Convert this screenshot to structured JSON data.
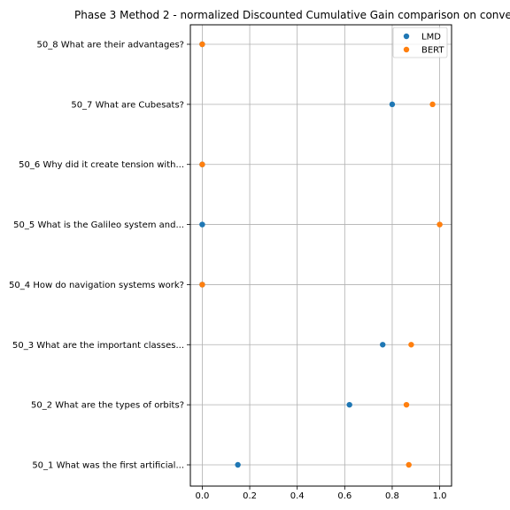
{
  "chart_data": {
    "type": "scatter",
    "title": "Phase 3 Method 2 - normalized Discounted Cumulative Gain comparison on conve",
    "xlabel": "",
    "ylabel": "",
    "xlim": [
      -0.05,
      1.05
    ],
    "xticks": [
      0.0,
      0.2,
      0.4,
      0.6,
      0.8,
      1.0
    ],
    "xtick_labels": [
      "0.0",
      "0.2",
      "0.4",
      "0.6",
      "0.8",
      "1.0"
    ],
    "categories": [
      "50_1 What was the first artificial...",
      "50_2 What are the types of orbits?",
      "50_3 What are the important classes...",
      "50_4 How do navigation systems work?",
      "50_5 What is the Galileo system and...",
      "50_6 Why did it create tension with...",
      "50_7 What are Cubesats?",
      "50_8 What are their advantages?"
    ],
    "series": [
      {
        "name": "LMD",
        "color": "#1f77b4",
        "values": [
          0.15,
          0.62,
          0.76,
          0.0,
          0.0,
          0.0,
          0.8,
          0.0
        ]
      },
      {
        "name": "BERT",
        "color": "#ff7f0e",
        "values": [
          0.87,
          0.86,
          0.88,
          0.0,
          1.0,
          0.0,
          0.97,
          0.0
        ]
      }
    ],
    "grid": true,
    "legend_position": "top-right"
  }
}
